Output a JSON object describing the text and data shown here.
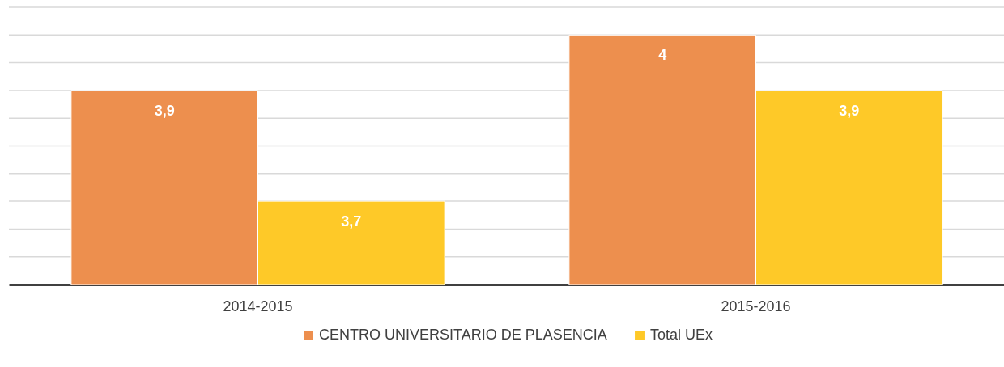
{
  "chart_data": {
    "type": "bar",
    "categories": [
      "2014-2015",
      "2015-2016"
    ],
    "series": [
      {
        "name": "CENTRO UNIVERSITARIO DE PLASENCIA",
        "color": "#ed8f4e",
        "values": [
          3.9,
          4
        ],
        "value_labels": [
          "3,9",
          "4"
        ]
      },
      {
        "name": "Total UEx",
        "color": "#fec928",
        "values": [
          3.7,
          3.9
        ],
        "value_labels": [
          "3,7",
          "3,9"
        ]
      }
    ],
    "ylim": [
      3.55,
      4.05
    ],
    "yticks": [
      {
        "value": 3.6,
        "label": null
      },
      {
        "value": 3.65,
        "label": null
      },
      {
        "value": 3.7,
        "label": null
      },
      {
        "value": 3.75,
        "label": null
      },
      {
        "value": 3.8,
        "label": null
      },
      {
        "value": 3.85,
        "label": null
      },
      {
        "value": 3.9,
        "label": null
      },
      {
        "value": 3.95,
        "label": null
      },
      {
        "value": 4,
        "label": null
      },
      {
        "value": 4.05,
        "label": null
      }
    ],
    "grid": "y",
    "tick_labels": "x",
    "legend": "bottom"
  }
}
